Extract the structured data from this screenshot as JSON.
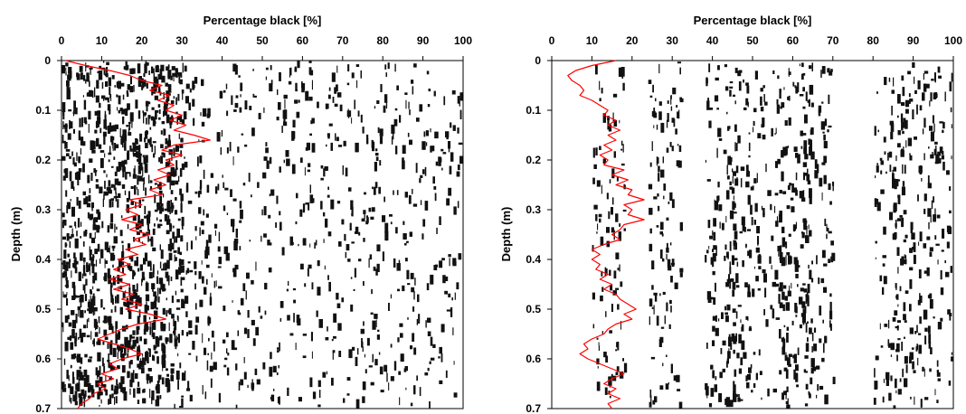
{
  "colors": {
    "profile": "#ff0000",
    "axes": "#000000",
    "pores": "#111111"
  },
  "chart_data": [
    {
      "type": "line",
      "title": "",
      "xlabel": "Percentage black [%]",
      "ylabel": "Depth (m)",
      "xlim": [
        0,
        100
      ],
      "ylim": [
        0,
        0.7
      ],
      "y_inverted": true,
      "x_axis_position": "top",
      "grid": false,
      "legend": "none",
      "xticks": [
        "0",
        "10",
        "20",
        "30",
        "40",
        "50",
        "60",
        "70",
        "80",
        "90",
        "100"
      ],
      "yticks": [
        "0",
        "0.1",
        "0.2",
        "0.3",
        "0.4",
        "0.5",
        "0.6",
        "0.7"
      ],
      "background": "black-and-white soil profile image with dense black pores concentrated at 0-30% width",
      "series": [
        {
          "values": [
            {
              "depth": 0.0,
              "pct": 1
            },
            {
              "depth": 0.01,
              "pct": 6
            },
            {
              "depth": 0.02,
              "pct": 12
            },
            {
              "depth": 0.03,
              "pct": 17
            },
            {
              "depth": 0.04,
              "pct": 20
            },
            {
              "depth": 0.05,
              "pct": 25
            },
            {
              "depth": 0.06,
              "pct": 22
            },
            {
              "depth": 0.07,
              "pct": 27
            },
            {
              "depth": 0.08,
              "pct": 24
            },
            {
              "depth": 0.09,
              "pct": 28
            },
            {
              "depth": 0.1,
              "pct": 26
            },
            {
              "depth": 0.11,
              "pct": 30
            },
            {
              "depth": 0.12,
              "pct": 27
            },
            {
              "depth": 0.13,
              "pct": 31
            },
            {
              "depth": 0.14,
              "pct": 28
            },
            {
              "depth": 0.15,
              "pct": 33
            },
            {
              "depth": 0.16,
              "pct": 37
            },
            {
              "depth": 0.17,
              "pct": 28
            },
            {
              "depth": 0.18,
              "pct": 25
            },
            {
              "depth": 0.19,
              "pct": 30
            },
            {
              "depth": 0.2,
              "pct": 26
            },
            {
              "depth": 0.21,
              "pct": 28
            },
            {
              "depth": 0.22,
              "pct": 24
            },
            {
              "depth": 0.23,
              "pct": 27
            },
            {
              "depth": 0.24,
              "pct": 23
            },
            {
              "depth": 0.25,
              "pct": 26
            },
            {
              "depth": 0.26,
              "pct": 22
            },
            {
              "depth": 0.27,
              "pct": 25
            },
            {
              "depth": 0.28,
              "pct": 17
            },
            {
              "depth": 0.29,
              "pct": 20
            },
            {
              "depth": 0.3,
              "pct": 16
            },
            {
              "depth": 0.31,
              "pct": 19
            },
            {
              "depth": 0.32,
              "pct": 15
            },
            {
              "depth": 0.33,
              "pct": 20
            },
            {
              "depth": 0.34,
              "pct": 17
            },
            {
              "depth": 0.35,
              "pct": 22
            },
            {
              "depth": 0.36,
              "pct": 18
            },
            {
              "depth": 0.37,
              "pct": 21
            },
            {
              "depth": 0.38,
              "pct": 16
            },
            {
              "depth": 0.39,
              "pct": 19
            },
            {
              "depth": 0.4,
              "pct": 14
            },
            {
              "depth": 0.41,
              "pct": 17
            },
            {
              "depth": 0.42,
              "pct": 13
            },
            {
              "depth": 0.43,
              "pct": 16
            },
            {
              "depth": 0.44,
              "pct": 12
            },
            {
              "depth": 0.45,
              "pct": 17
            },
            {
              "depth": 0.46,
              "pct": 13
            },
            {
              "depth": 0.47,
              "pct": 18
            },
            {
              "depth": 0.48,
              "pct": 15
            },
            {
              "depth": 0.49,
              "pct": 20
            },
            {
              "depth": 0.5,
              "pct": 16
            },
            {
              "depth": 0.51,
              "pct": 22
            },
            {
              "depth": 0.52,
              "pct": 26
            },
            {
              "depth": 0.53,
              "pct": 19
            },
            {
              "depth": 0.54,
              "pct": 15
            },
            {
              "depth": 0.55,
              "pct": 12
            },
            {
              "depth": 0.56,
              "pct": 9
            },
            {
              "depth": 0.57,
              "pct": 13
            },
            {
              "depth": 0.58,
              "pct": 17
            },
            {
              "depth": 0.59,
              "pct": 20
            },
            {
              "depth": 0.6,
              "pct": 15
            },
            {
              "depth": 0.61,
              "pct": 12
            },
            {
              "depth": 0.62,
              "pct": 14
            },
            {
              "depth": 0.63,
              "pct": 10
            },
            {
              "depth": 0.64,
              "pct": 13
            },
            {
              "depth": 0.65,
              "pct": 9
            },
            {
              "depth": 0.66,
              "pct": 11
            },
            {
              "depth": 0.67,
              "pct": 8
            },
            {
              "depth": 0.68,
              "pct": 7
            },
            {
              "depth": 0.69,
              "pct": 5
            },
            {
              "depth": 0.7,
              "pct": 4
            }
          ]
        }
      ]
    },
    {
      "type": "line",
      "title": "",
      "xlabel": "Percentage black [%]",
      "ylabel": "Depth (m)",
      "xlim": [
        0,
        100
      ],
      "ylim": [
        0,
        0.7
      ],
      "y_inverted": true,
      "x_axis_position": "top",
      "grid": false,
      "legend": "none",
      "xticks": [
        "0",
        "10",
        "20",
        "30",
        "40",
        "50",
        "60",
        "70",
        "80",
        "90",
        "100"
      ],
      "yticks": [
        "0",
        "0.1",
        "0.2",
        "0.3",
        "0.4",
        "0.5",
        "0.6",
        "0.7"
      ],
      "background": "black-and-white soil profile image with scattered vertical black pore columns",
      "series": [
        {
          "values": [
            {
              "depth": 0.0,
              "pct": 16
            },
            {
              "depth": 0.01,
              "pct": 10
            },
            {
              "depth": 0.02,
              "pct": 6
            },
            {
              "depth": 0.03,
              "pct": 4
            },
            {
              "depth": 0.04,
              "pct": 5
            },
            {
              "depth": 0.05,
              "pct": 7
            },
            {
              "depth": 0.06,
              "pct": 8
            },
            {
              "depth": 0.07,
              "pct": 7
            },
            {
              "depth": 0.08,
              "pct": 10
            },
            {
              "depth": 0.09,
              "pct": 12
            },
            {
              "depth": 0.1,
              "pct": 14
            },
            {
              "depth": 0.11,
              "pct": 13
            },
            {
              "depth": 0.12,
              "pct": 16
            },
            {
              "depth": 0.13,
              "pct": 14
            },
            {
              "depth": 0.14,
              "pct": 17
            },
            {
              "depth": 0.15,
              "pct": 14
            },
            {
              "depth": 0.16,
              "pct": 16
            },
            {
              "depth": 0.17,
              "pct": 13
            },
            {
              "depth": 0.18,
              "pct": 15
            },
            {
              "depth": 0.19,
              "pct": 12
            },
            {
              "depth": 0.2,
              "pct": 14
            },
            {
              "depth": 0.21,
              "pct": 13
            },
            {
              "depth": 0.22,
              "pct": 18
            },
            {
              "depth": 0.23,
              "pct": 15
            },
            {
              "depth": 0.24,
              "pct": 19
            },
            {
              "depth": 0.25,
              "pct": 16
            },
            {
              "depth": 0.26,
              "pct": 20
            },
            {
              "depth": 0.27,
              "pct": 19
            },
            {
              "depth": 0.28,
              "pct": 23
            },
            {
              "depth": 0.29,
              "pct": 18
            },
            {
              "depth": 0.3,
              "pct": 20
            },
            {
              "depth": 0.31,
              "pct": 19
            },
            {
              "depth": 0.32,
              "pct": 23
            },
            {
              "depth": 0.33,
              "pct": 18
            },
            {
              "depth": 0.34,
              "pct": 17
            },
            {
              "depth": 0.35,
              "pct": 15
            },
            {
              "depth": 0.36,
              "pct": 17
            },
            {
              "depth": 0.37,
              "pct": 13
            },
            {
              "depth": 0.38,
              "pct": 10
            },
            {
              "depth": 0.39,
              "pct": 12
            },
            {
              "depth": 0.4,
              "pct": 10
            },
            {
              "depth": 0.41,
              "pct": 12
            },
            {
              "depth": 0.42,
              "pct": 11
            },
            {
              "depth": 0.43,
              "pct": 14
            },
            {
              "depth": 0.44,
              "pct": 12
            },
            {
              "depth": 0.45,
              "pct": 15
            },
            {
              "depth": 0.46,
              "pct": 13
            },
            {
              "depth": 0.47,
              "pct": 16
            },
            {
              "depth": 0.48,
              "pct": 17
            },
            {
              "depth": 0.49,
              "pct": 19
            },
            {
              "depth": 0.5,
              "pct": 21
            },
            {
              "depth": 0.51,
              "pct": 18
            },
            {
              "depth": 0.52,
              "pct": 20
            },
            {
              "depth": 0.53,
              "pct": 16
            },
            {
              "depth": 0.54,
              "pct": 14
            },
            {
              "depth": 0.55,
              "pct": 13
            },
            {
              "depth": 0.56,
              "pct": 10
            },
            {
              "depth": 0.57,
              "pct": 8
            },
            {
              "depth": 0.58,
              "pct": 9
            },
            {
              "depth": 0.59,
              "pct": 7
            },
            {
              "depth": 0.6,
              "pct": 9
            },
            {
              "depth": 0.61,
              "pct": 12
            },
            {
              "depth": 0.62,
              "pct": 15
            },
            {
              "depth": 0.63,
              "pct": 18
            },
            {
              "depth": 0.64,
              "pct": 15
            },
            {
              "depth": 0.65,
              "pct": 13
            },
            {
              "depth": 0.66,
              "pct": 16
            },
            {
              "depth": 0.67,
              "pct": 14
            },
            {
              "depth": 0.68,
              "pct": 17
            },
            {
              "depth": 0.69,
              "pct": 14
            },
            {
              "depth": 0.7,
              "pct": 15
            }
          ]
        }
      ]
    }
  ]
}
